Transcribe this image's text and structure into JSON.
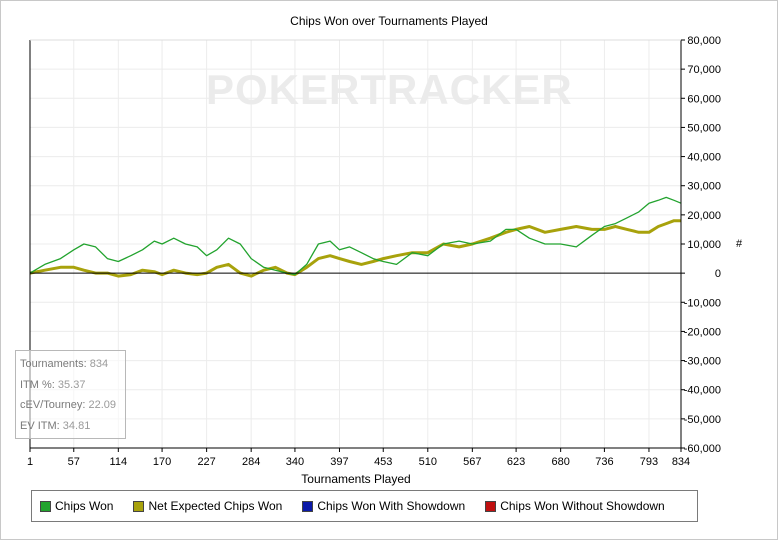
{
  "colors": {
    "chips_won": "#22a32e",
    "net_expected": "#a8a20c",
    "with_showdown": "#0b1aa8",
    "without_showdown": "#c01010",
    "grid": "#ececec",
    "zero_line": "#000000"
  },
  "watermark": "POKERTRACKER",
  "stats": [
    {
      "label": "Tournaments:",
      "value": "834"
    },
    {
      "label": "ITM %:",
      "value": "35.37"
    },
    {
      "label": "cEV/Tourney:",
      "value": "22.09"
    },
    {
      "label": "EV ITM:",
      "value": "34.81"
    }
  ],
  "legend": [
    {
      "label": "Chips Won",
      "color": "#22a32e",
      "icon": "green-square-icon"
    },
    {
      "label": "Net Expected Chips Won",
      "color": "#a8a20c",
      "icon": "olive-square-icon"
    },
    {
      "label": "Chips Won With Showdown",
      "color": "#0b1aa8",
      "icon": "blue-square-icon"
    },
    {
      "label": "Chips Won Without Showdown",
      "color": "#c01010",
      "icon": "red-square-icon"
    }
  ],
  "chart_data": {
    "type": "line",
    "title": "Chips Won over Tournaments Played",
    "xlabel": "Tournaments Played",
    "ylabel": "#",
    "xlim": [
      1,
      834
    ],
    "ylim": [
      -60000,
      80000
    ],
    "x_ticks": [
      "1",
      "57",
      "114",
      "170",
      "227",
      "284",
      "340",
      "397",
      "453",
      "510",
      "567",
      "623",
      "680",
      "736",
      "793",
      "834"
    ],
    "y_ticks": [
      "80,000",
      "70,000",
      "60,000",
      "50,000",
      "40,000",
      "30,000",
      "20,000",
      "10,000",
      "0",
      "-10,000",
      "-20,000",
      "-30,000",
      "-40,000",
      "-50,000",
      "-60,000"
    ],
    "grid": true,
    "legend_position": "bottom",
    "series": [
      {
        "name": "Chips Won",
        "x": [
          1,
          20,
          40,
          57,
          70,
          85,
          100,
          114,
          130,
          145,
          160,
          170,
          185,
          200,
          215,
          227,
          240,
          255,
          270,
          284,
          300,
          315,
          330,
          340,
          355,
          370,
          385,
          397,
          410,
          425,
          440,
          453,
          470,
          490,
          510,
          530,
          550,
          567,
          590,
          610,
          623,
          640,
          660,
          680,
          700,
          720,
          736,
          750,
          765,
          780,
          793,
          805,
          815,
          825,
          834
        ],
        "y": [
          0,
          3000,
          5000,
          8000,
          10000,
          9000,
          5000,
          4000,
          6000,
          8000,
          11000,
          10000,
          12000,
          10000,
          9000,
          6000,
          8000,
          12000,
          10000,
          5000,
          2000,
          1000,
          0,
          -500,
          3000,
          10000,
          11000,
          8000,
          9000,
          7000,
          5000,
          4000,
          3000,
          7000,
          6000,
          10000,
          11000,
          10000,
          11000,
          15000,
          15000,
          12000,
          10000,
          10000,
          9000,
          13000,
          16000,
          17000,
          19000,
          21000,
          24000,
          25000,
          26000,
          25000,
          24000
        ]
      },
      {
        "name": "Net Expected Chips Won",
        "x": [
          1,
          20,
          40,
          57,
          70,
          85,
          100,
          114,
          130,
          145,
          160,
          170,
          185,
          200,
          215,
          227,
          240,
          255,
          270,
          284,
          300,
          315,
          330,
          340,
          355,
          370,
          385,
          397,
          410,
          425,
          440,
          453,
          470,
          490,
          510,
          530,
          550,
          567,
          590,
          610,
          623,
          640,
          660,
          680,
          700,
          720,
          736,
          750,
          765,
          780,
          793,
          805,
          815,
          825,
          834
        ],
        "y": [
          0,
          1000,
          2000,
          2000,
          1000,
          0,
          0,
          -1000,
          -500,
          1000,
          500,
          -500,
          1000,
          0,
          -500,
          0,
          2000,
          3000,
          0,
          -1000,
          1000,
          2000,
          0,
          -500,
          2000,
          5000,
          6000,
          5000,
          4000,
          3000,
          4000,
          5000,
          6000,
          7000,
          7000,
          10000,
          9000,
          10000,
          12000,
          14000,
          15000,
          16000,
          14000,
          15000,
          16000,
          15000,
          15000,
          16000,
          15000,
          14000,
          14000,
          16000,
          17000,
          18000,
          18000
        ]
      }
    ]
  }
}
